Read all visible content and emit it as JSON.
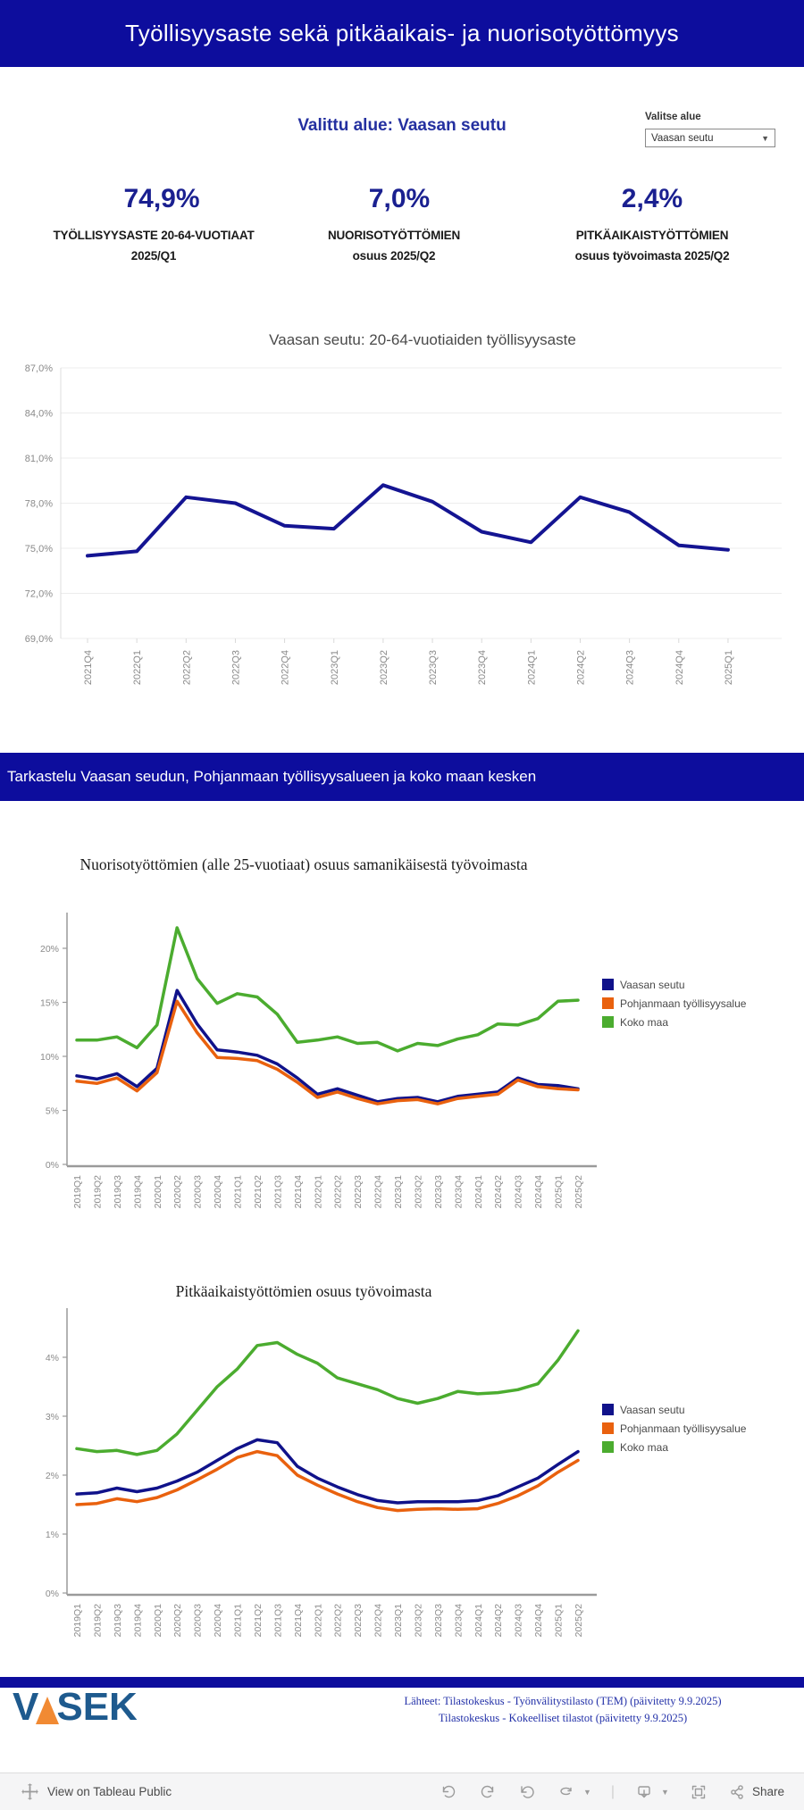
{
  "header": {
    "title": "Työllisyysaste sekä pitkäaikais- ja nuorisotyöttömyys"
  },
  "region_selector": {
    "selected_label": "Valittu alue: Vaasan seutu",
    "dropdown_label": "Valitse alue",
    "dropdown_value": "Vaasan seutu"
  },
  "kpis": [
    {
      "value": "74,9%",
      "caption_line1": "TYÖLLISYYSASTE 20-64-VUOTIAAT",
      "caption_line2": "2025/Q1"
    },
    {
      "value": "7,0%",
      "caption_line1": "NUORISOTYÖTTÖMIEN",
      "caption_line2": "osuus 2025/Q2"
    },
    {
      "value": "2,4%",
      "caption_line1": "PITKÄAIKAISTYÖTTÖMIEN",
      "caption_line2": "osuus työvoimasta 2025/Q2"
    }
  ],
  "section_banner": {
    "text": "Tarkastelu Vaasan seudun, Pohjanmaan työllisyysalueen ja koko maan kesken"
  },
  "legend": {
    "items": [
      {
        "label": "Vaasan seutu",
        "color": "#10128A"
      },
      {
        "label": "Pohjanmaan työllisyysalue",
        "color": "#E9610E"
      },
      {
        "label": "Koko maa",
        "color": "#4BAC2F"
      }
    ]
  },
  "footer": {
    "sources_line1": "Lähteet: Tilastokeskus - Työnvälitystilasto (TEM) (päivitetty 9.9.2025)",
    "sources_line2": "Tilastokeskus - Kokeelliset tilastot (päivitetty 9.9.2025)"
  },
  "toolbar": {
    "view_label": "View on Tableau Public",
    "share_label": "Share"
  },
  "colors": {
    "banner": "#0D0D9D",
    "headline_blue": "#2430A0",
    "kpi_blue": "#1A2090"
  },
  "chart_data": [
    {
      "type": "line",
      "title": "Vaasan seutu: 20-64-vuotiaiden työllisyysaste",
      "categories": [
        "2021Q4",
        "2022Q1",
        "2022Q2",
        "2022Q3",
        "2022Q4",
        "2023Q1",
        "2023Q2",
        "2023Q3",
        "2023Q4",
        "2024Q1",
        "2024Q2",
        "2024Q3",
        "2024Q4",
        "2025Q1"
      ],
      "series": [
        {
          "name": "Vaasan seutu",
          "color": "#141492",
          "values": [
            74.5,
            74.8,
            78.4,
            78.0,
            76.5,
            76.3,
            79.2,
            78.1,
            76.1,
            75.4,
            78.4,
            77.4,
            75.2,
            74.9
          ]
        }
      ],
      "y_ticks": [
        {
          "value": 87,
          "label": "87,0%"
        },
        {
          "value": 84,
          "label": "84,0%"
        },
        {
          "value": 81,
          "label": "81,0%"
        },
        {
          "value": 78,
          "label": "78,0%"
        },
        {
          "value": 75,
          "label": "75,0%"
        },
        {
          "value": 72,
          "label": "72,0%"
        },
        {
          "value": 69,
          "label": "69,0%"
        }
      ],
      "ylim": [
        69,
        87
      ],
      "grid": true,
      "legend_position": "none"
    },
    {
      "type": "line",
      "title": "Nuorisotyöttömien (alle 25-vuotiaat) osuus samanikäisestä työvoimasta",
      "categories": [
        "2019Q1",
        "2019Q2",
        "2019Q3",
        "2019Q4",
        "2020Q1",
        "2020Q2",
        "2020Q3",
        "2020Q4",
        "2021Q1",
        "2021Q2",
        "2021Q3",
        "2021Q4",
        "2022Q1",
        "2022Q2",
        "2022Q3",
        "2022Q4",
        "2023Q1",
        "2023Q2",
        "2023Q3",
        "2023Q4",
        "2024Q1",
        "2024Q2",
        "2024Q3",
        "2024Q4",
        "2025Q1",
        "2025Q2"
      ],
      "series": [
        {
          "name": "Vaasan seutu",
          "color": "#10128A",
          "values": [
            8.2,
            7.9,
            8.4,
            7.2,
            8.9,
            16.1,
            13.0,
            10.6,
            10.4,
            10.1,
            9.3,
            8.0,
            6.5,
            7.0,
            6.4,
            5.8,
            6.1,
            6.2,
            5.8,
            6.3,
            6.5,
            6.7,
            8.0,
            7.4,
            7.3,
            7.0
          ]
        },
        {
          "name": "Pohjanmaan työllisyysalue",
          "color": "#E9610E",
          "values": [
            7.7,
            7.5,
            8.0,
            6.8,
            8.5,
            15.1,
            12.2,
            9.9,
            9.8,
            9.6,
            8.8,
            7.6,
            6.2,
            6.7,
            6.1,
            5.6,
            5.9,
            6.0,
            5.6,
            6.1,
            6.3,
            6.5,
            7.8,
            7.2,
            7.0,
            6.9
          ]
        },
        {
          "name": "Koko maa",
          "color": "#4BAC2F",
          "values": [
            11.5,
            11.5,
            11.8,
            10.8,
            12.9,
            21.9,
            17.2,
            14.9,
            15.8,
            15.5,
            13.9,
            11.3,
            11.5,
            11.8,
            11.2,
            11.3,
            10.5,
            11.2,
            11.0,
            11.6,
            12.0,
            13.0,
            12.9,
            13.5,
            15.1,
            15.2
          ]
        }
      ],
      "y_ticks": [
        {
          "value": 20,
          "label": "20%"
        },
        {
          "value": 15,
          "label": "15%"
        },
        {
          "value": 10,
          "label": "10%"
        },
        {
          "value": 5,
          "label": "5%"
        },
        {
          "value": 0,
          "label": "0%"
        }
      ],
      "ylim": [
        0,
        22.5
      ],
      "grid": false,
      "legend_position": "right"
    },
    {
      "type": "line",
      "title": "Pitkäaikaistyöttömien osuus työvoimasta",
      "categories": [
        "2019Q1",
        "2019Q2",
        "2019Q3",
        "2019Q4",
        "2020Q1",
        "2020Q2",
        "2020Q3",
        "2020Q4",
        "2021Q1",
        "2021Q2",
        "2021Q3",
        "2021Q4",
        "2022Q1",
        "2022Q2",
        "2022Q3",
        "2022Q4",
        "2023Q1",
        "2023Q2",
        "2023Q3",
        "2023Q4",
        "2024Q1",
        "2024Q2",
        "2024Q3",
        "2024Q4",
        "2025Q1",
        "2025Q2"
      ],
      "series": [
        {
          "name": "Vaasan seutu",
          "color": "#10128A",
          "values": [
            1.68,
            1.7,
            1.78,
            1.72,
            1.78,
            1.9,
            2.05,
            2.25,
            2.45,
            2.6,
            2.55,
            2.15,
            1.95,
            1.8,
            1.67,
            1.57,
            1.53,
            1.55,
            1.55,
            1.55,
            1.57,
            1.65,
            1.8,
            1.95,
            2.18,
            2.4
          ]
        },
        {
          "name": "Pohjanmaan työllisyysalue",
          "color": "#E9610E",
          "values": [
            1.5,
            1.52,
            1.6,
            1.55,
            1.62,
            1.75,
            1.92,
            2.1,
            2.3,
            2.4,
            2.33,
            2.0,
            1.83,
            1.68,
            1.55,
            1.45,
            1.4,
            1.42,
            1.43,
            1.42,
            1.43,
            1.52,
            1.65,
            1.82,
            2.05,
            2.25
          ]
        },
        {
          "name": "Koko maa",
          "color": "#4BAC2F",
          "values": [
            2.45,
            2.4,
            2.42,
            2.35,
            2.42,
            2.7,
            3.1,
            3.5,
            3.8,
            4.2,
            4.25,
            4.05,
            3.9,
            3.65,
            3.55,
            3.45,
            3.3,
            3.22,
            3.3,
            3.42,
            3.38,
            3.4,
            3.45,
            3.55,
            3.95,
            4.45
          ]
        }
      ],
      "y_ticks": [
        {
          "value": 4,
          "label": "4%"
        },
        {
          "value": 3,
          "label": "3%"
        },
        {
          "value": 2,
          "label": "2%"
        },
        {
          "value": 1,
          "label": "1%"
        },
        {
          "value": 0,
          "label": "0%"
        }
      ],
      "ylim": [
        0,
        4.6
      ],
      "grid": false,
      "legend_position": "right"
    }
  ]
}
